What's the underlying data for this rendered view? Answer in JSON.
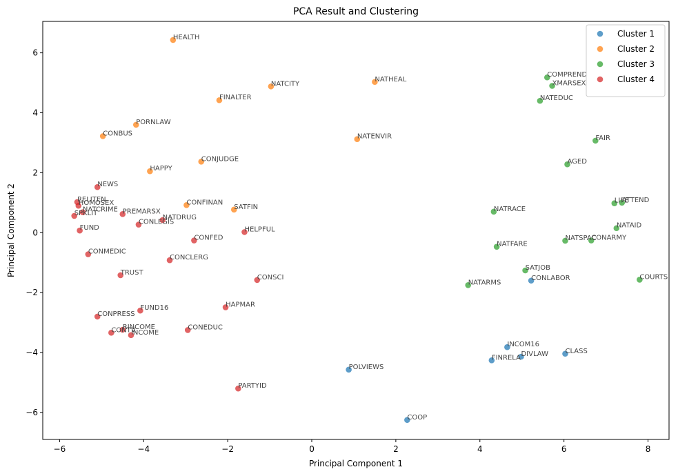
{
  "chart_data": {
    "type": "scatter",
    "title": "PCA Result and Clustering",
    "xlabel": "Principal Component 1",
    "ylabel": "Principal Component 2",
    "xlim": [
      -6.4,
      8.5
    ],
    "ylim": [
      -6.9,
      7.05
    ],
    "xticks": [
      -6,
      -4,
      -2,
      0,
      2,
      4,
      6,
      8
    ],
    "yticks": [
      -6,
      -4,
      -2,
      0,
      2,
      4,
      6
    ],
    "grid": false,
    "legend_position": "top-right",
    "series": [
      {
        "name": "Cluster 1",
        "color": "#1f77b4",
        "points": [
          {
            "label": "CONLABOR",
            "x": 5.22,
            "y": -1.6
          },
          {
            "label": "INCOM16",
            "x": 4.65,
            "y": -3.82
          },
          {
            "label": "DIVLAW",
            "x": 4.98,
            "y": -4.14
          },
          {
            "label": "FINRELA",
            "x": 4.28,
            "y": -4.26
          },
          {
            "label": "CLASS",
            "x": 6.03,
            "y": -4.04
          },
          {
            "label": "POLVIEWS",
            "x": 0.88,
            "y": -4.57
          },
          {
            "label": "COOP",
            "x": 2.27,
            "y": -6.25
          }
        ]
      },
      {
        "name": "Cluster 2",
        "color": "#ff7f0e",
        "points": [
          {
            "label": "HEALTH",
            "x": -3.3,
            "y": 6.43
          },
          {
            "label": "NATCITY",
            "x": -0.97,
            "y": 4.88
          },
          {
            "label": "NATHEAL",
            "x": 1.5,
            "y": 5.03
          },
          {
            "label": "FINALTER",
            "x": -2.2,
            "y": 4.42
          },
          {
            "label": "PORNLAW",
            "x": -4.18,
            "y": 3.6
          },
          {
            "label": "CONBUS",
            "x": -4.97,
            "y": 3.22
          },
          {
            "label": "NATENVIR",
            "x": 1.08,
            "y": 3.12
          },
          {
            "label": "CONJUDGE",
            "x": -2.63,
            "y": 2.37
          },
          {
            "label": "HAPPY",
            "x": -3.85,
            "y": 2.05
          },
          {
            "label": "CONFINAN",
            "x": -2.98,
            "y": 0.92
          },
          {
            "label": "SATFIN",
            "x": -1.85,
            "y": 0.77
          }
        ]
      },
      {
        "name": "Cluster 3",
        "color": "#2ca02c",
        "points": [
          {
            "label": "COMPREND",
            "x": 5.6,
            "y": 5.18
          },
          {
            "label": "XMARSEX",
            "x": 5.72,
            "y": 4.9
          },
          {
            "label": "NATEDUC",
            "x": 5.43,
            "y": 4.4
          },
          {
            "label": "FAIR",
            "x": 6.75,
            "y": 3.07
          },
          {
            "label": "AGED",
            "x": 6.08,
            "y": 2.28
          },
          {
            "label": "LIFE",
            "x": 7.2,
            "y": 0.98
          },
          {
            "label": "ATTEND",
            "x": 7.38,
            "y": 1.0
          },
          {
            "label": "NATRACE",
            "x": 4.33,
            "y": 0.7
          },
          {
            "label": "NATAID",
            "x": 7.25,
            "y": 0.15
          },
          {
            "label": "NATSPAC",
            "x": 6.03,
            "y": -0.27
          },
          {
            "label": "CONARMY",
            "x": 6.65,
            "y": -0.26
          },
          {
            "label": "NATFARE",
            "x": 4.4,
            "y": -0.47
          },
          {
            "label": "SATJOB",
            "x": 5.08,
            "y": -1.26
          },
          {
            "label": "NATARMS",
            "x": 3.72,
            "y": -1.75
          },
          {
            "label": "COURTS",
            "x": 7.8,
            "y": -1.57
          }
        ]
      },
      {
        "name": "Cluster 4",
        "color": "#d62728",
        "points": [
          {
            "label": "NEWS",
            "x": -5.1,
            "y": 1.52
          },
          {
            "label": "RELITEN",
            "x": -5.58,
            "y": 1.02
          },
          {
            "label": "HOMOSEX",
            "x": -5.55,
            "y": 0.9
          },
          {
            "label": "NATCRIME",
            "x": -5.45,
            "y": 0.68
          },
          {
            "label": "SPKLIT",
            "x": -5.65,
            "y": 0.56
          },
          {
            "label": "FUND",
            "x": -5.52,
            "y": 0.07
          },
          {
            "label": "PREMARSX",
            "x": -4.5,
            "y": 0.62
          },
          {
            "label": "NATDRUG",
            "x": -3.55,
            "y": 0.42
          },
          {
            "label": "CONLEGIS",
            "x": -4.12,
            "y": 0.27
          },
          {
            "label": "HELPFUL",
            "x": -1.6,
            "y": 0.02
          },
          {
            "label": "CONFED",
            "x": -2.8,
            "y": -0.26
          },
          {
            "label": "CONMEDIC",
            "x": -5.32,
            "y": -0.72
          },
          {
            "label": "CONCLERG",
            "x": -3.38,
            "y": -0.92
          },
          {
            "label": "TRUST",
            "x": -4.55,
            "y": -1.42
          },
          {
            "label": "CONSCI",
            "x": -1.3,
            "y": -1.58
          },
          {
            "label": "FUND16",
            "x": -4.08,
            "y": -2.6
          },
          {
            "label": "HAPMAR",
            "x": -2.05,
            "y": -2.49
          },
          {
            "label": "CONPRESS",
            "x": -5.1,
            "y": -2.8
          },
          {
            "label": "RINCOME",
            "x": -4.5,
            "y": -3.24
          },
          {
            "label": "CONTV",
            "x": -4.77,
            "y": -3.34
          },
          {
            "label": "INCOME",
            "x": -4.3,
            "y": -3.42
          },
          {
            "label": "CONEDUC",
            "x": -2.95,
            "y": -3.25
          },
          {
            "label": "PARTYID",
            "x": -1.75,
            "y": -5.2
          }
        ]
      }
    ]
  }
}
